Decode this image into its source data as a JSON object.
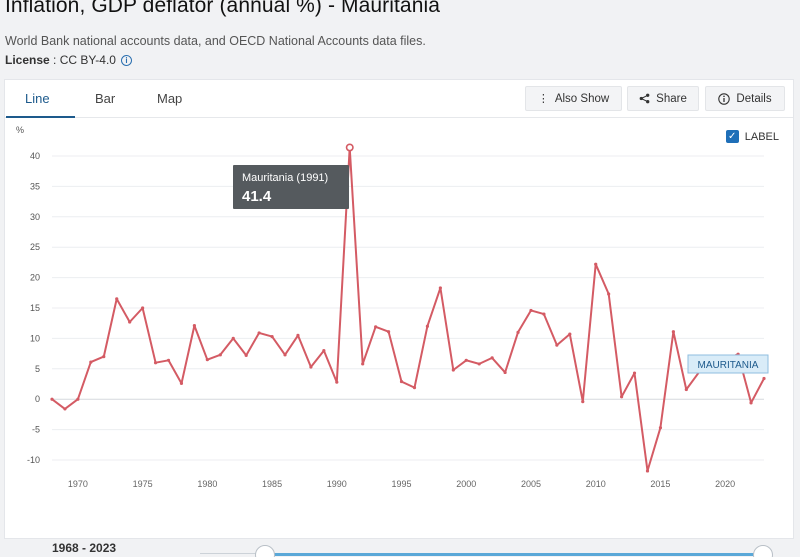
{
  "header": {
    "title": "Inflation, GDP deflator (annual %) - Mauritania",
    "subtitle": "World Bank national accounts data, and OECD National Accounts data files.",
    "license_label": "License",
    "license_value": " : CC BY-4.0"
  },
  "tabs": [
    {
      "label": "Line",
      "active": true
    },
    {
      "label": "Bar",
      "active": false
    },
    {
      "label": "Map",
      "active": false
    }
  ],
  "toolbar": {
    "also_show": "Also Show",
    "share": "Share",
    "details": "Details"
  },
  "label_toggle": {
    "label": "LABEL",
    "checked": true
  },
  "tooltip": {
    "title": "Mauritania (1991)",
    "value": "41.4"
  },
  "range": {
    "text": "1968 - 2023"
  },
  "colors": {
    "line": "#d45b64",
    "accent": "#1d5a8c",
    "slider": "#5aa8d8"
  },
  "chart_data": {
    "type": "line",
    "ylabel": "%",
    "xlim": [
      1968,
      2023
    ],
    "ylim": [
      -10,
      40
    ],
    "yticks": [
      -10,
      -5,
      0,
      5,
      10,
      15,
      20,
      25,
      30,
      35,
      40
    ],
    "xticks": [
      1970,
      1975,
      1980,
      1985,
      1990,
      1995,
      2000,
      2005,
      2010,
      2015,
      2020
    ],
    "grid": true,
    "series": [
      {
        "name": "MAURITANIA",
        "x": [
          1968,
          1969,
          1970,
          1971,
          1972,
          1973,
          1974,
          1975,
          1976,
          1977,
          1978,
          1979,
          1980,
          1981,
          1982,
          1983,
          1984,
          1985,
          1986,
          1987,
          1988,
          1989,
          1990,
          1991,
          1992,
          1993,
          1994,
          1995,
          1996,
          1997,
          1998,
          1999,
          2000,
          2001,
          2002,
          2003,
          2004,
          2005,
          2006,
          2007,
          2008,
          2009,
          2010,
          2011,
          2012,
          2013,
          2014,
          2015,
          2016,
          2017,
          2018,
          2019,
          2020,
          2021,
          2022,
          2023
        ],
        "values": [
          0.0,
          -1.6,
          0.0,
          6.1,
          7.0,
          16.5,
          12.7,
          15.0,
          6.0,
          6.4,
          2.6,
          12.1,
          6.5,
          7.3,
          10.0,
          7.2,
          10.9,
          10.3,
          7.3,
          10.5,
          5.3,
          8.0,
          2.8,
          41.4,
          5.8,
          11.9,
          11.1,
          2.9,
          1.9,
          12.0,
          18.3,
          4.8,
          6.4,
          5.8,
          6.8,
          4.4,
          11.0,
          14.6,
          14.0,
          8.9,
          10.7,
          -0.4,
          22.2,
          17.3,
          0.4,
          4.3,
          -11.8,
          -4.7,
          11.1,
          1.6,
          4.5,
          5.0,
          6.5,
          7.4,
          -0.6,
          3.4
        ]
      }
    ],
    "highlight": {
      "x": 1991,
      "y": 41.4
    }
  }
}
